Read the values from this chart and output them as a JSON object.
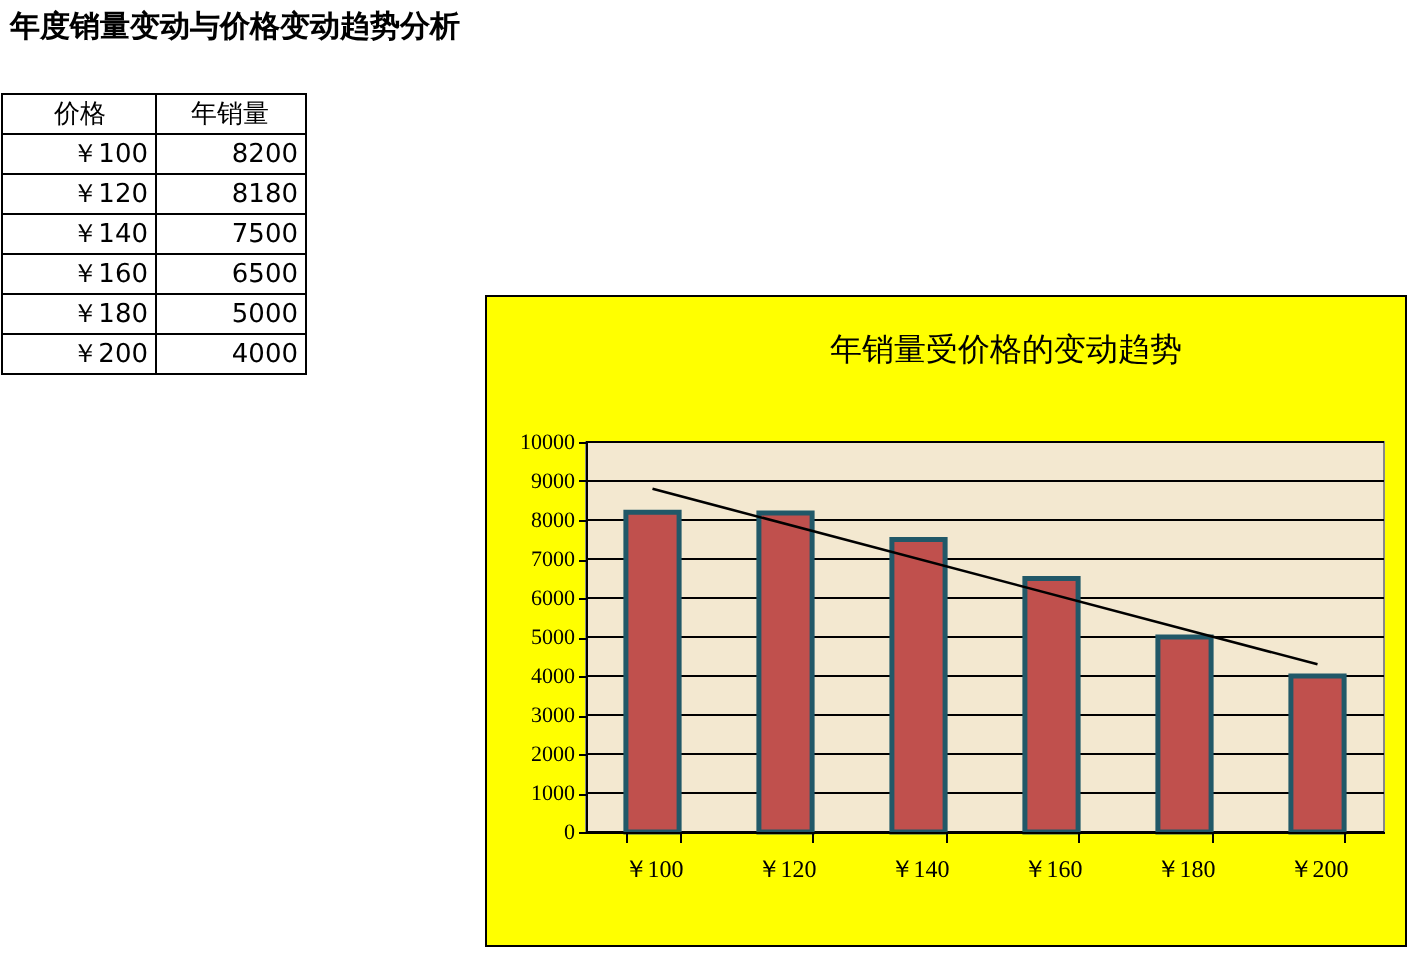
{
  "chart_data": {
    "type": "bar",
    "title": "年销量受价格的变动趋势",
    "annotations": [
      "年度销量变动与价格变动趋势分析",
      "价格",
      "年销量",
      "8200",
      "8180",
      "7500",
      "6500",
      "5000",
      "4000"
    ],
    "categories": [
      "￥100",
      "￥120",
      "￥140",
      "￥160",
      "￥180",
      "￥200"
    ],
    "series": [
      {
        "color": "#c0504d",
        "values": [
          8200,
          8180,
          7500,
          6500,
          5000,
          4000
        ]
      },
      {
        "type": "line",
        "color": "#000000",
        "x": [
          "￥100",
          "￥200"
        ],
        "values": [
          8800,
          4300
        ]
      }
    ],
    "ylim": [
      0,
      10000
    ],
    "yticks": [
      0,
      1000,
      2000,
      3000,
      4000,
      5000,
      6000,
      7000,
      8000,
      9000,
      10000
    ],
    "grid": "y"
  }
}
